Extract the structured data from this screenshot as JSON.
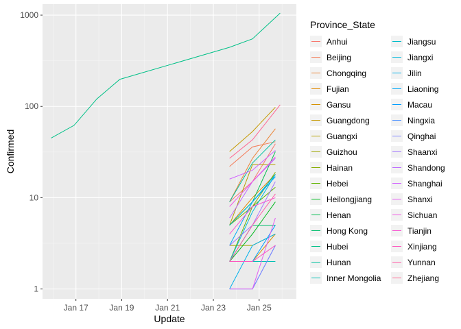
{
  "chart_data": {
    "type": "line",
    "xlabel": "Update",
    "ylabel": "Confirmed",
    "y_scale": "log10",
    "ylim": [
      0.78,
      1320
    ],
    "xlim": [
      "2020-01-15T13:00",
      "2020-01-26T15:00"
    ],
    "y_ticks": [
      1,
      10,
      100,
      1000
    ],
    "y_tick_labels": [
      "1",
      "10",
      "100",
      "1000"
    ],
    "x_ticks": [
      "2020-01-17",
      "2020-01-19",
      "2020-01-21",
      "2020-01-23",
      "2020-01-25"
    ],
    "x_tick_labels": [
      "Jan 17",
      "Jan 19",
      "Jan 21",
      "Jan 23",
      "Jan 25"
    ],
    "grid": true,
    "legend": {
      "title": "Province_State",
      "placement": "right",
      "columns": 2
    },
    "series": [
      {
        "name": "Anhui",
        "color": "#F8766D",
        "x": [
          "2020-01-23T17:00",
          "2020-01-24T17:00",
          "2020-01-25T17:00"
        ],
        "y": [
          9,
          15,
          39
        ]
      },
      {
        "name": "Beijing",
        "color": "#F47B57",
        "x": [
          "2020-01-23T17:00",
          "2020-01-24T17:00",
          "2020-01-25T17:00"
        ],
        "y": [
          22,
          36,
          41
        ]
      },
      {
        "name": "Chongqing",
        "color": "#EB8335",
        "x": [
          "2020-01-23T17:00",
          "2020-01-24T17:00",
          "2020-01-25T17:00"
        ],
        "y": [
          9,
          27,
          57
        ]
      },
      {
        "name": "Fujian",
        "color": "#E18A00",
        "x": [
          "2020-01-23T17:00",
          "2020-01-24T17:00",
          "2020-01-25T17:00"
        ],
        "y": [
          5,
          10,
          18
        ]
      },
      {
        "name": "Gansu",
        "color": "#D59100",
        "x": [
          "2020-01-23T17:00",
          "2020-01-24T17:00",
          "2020-01-25T17:00"
        ],
        "y": [
          2,
          2,
          4
        ]
      },
      {
        "name": "Guangdong",
        "color": "#C59900",
        "x": [
          "2020-01-23T17:00",
          "2020-01-24T17:00",
          "2020-01-25T17:00"
        ],
        "y": [
          32,
          53,
          98
        ]
      },
      {
        "name": "Guangxi",
        "color": "#B3A000",
        "x": [
          "2020-01-23T17:00",
          "2020-01-24T17:00",
          "2020-01-25T17:00"
        ],
        "y": [
          5,
          23,
          23
        ]
      },
      {
        "name": "Guizhou",
        "color": "#9EA700",
        "x": [
          "2020-01-23T17:00",
          "2020-01-24T17:00",
          "2020-01-25T17:00"
        ],
        "y": [
          3,
          3,
          4
        ]
      },
      {
        "name": "Hainan",
        "color": "#85AD00",
        "x": [
          "2020-01-23T17:00",
          "2020-01-24T17:00",
          "2020-01-25T17:00"
        ],
        "y": [
          5,
          8,
          19
        ]
      },
      {
        "name": "Hebei",
        "color": "#5FB300",
        "x": [
          "2020-01-23T17:00",
          "2020-01-24T17:00",
          "2020-01-25T17:00"
        ],
        "y": [
          2,
          8,
          13
        ]
      },
      {
        "name": "Heilongjiang",
        "color": "#00B81F",
        "x": [
          "2020-01-23T17:00",
          "2020-01-24T17:00",
          "2020-01-25T17:00"
        ],
        "y": [
          2,
          4,
          9
        ]
      },
      {
        "name": "Henan",
        "color": "#00BB4E",
        "x": [
          "2020-01-23T17:00",
          "2020-01-24T17:00",
          "2020-01-25T17:00"
        ],
        "y": [
          5,
          9,
          32
        ]
      },
      {
        "name": "Hong Kong",
        "color": "#00BE6C",
        "x": [
          "2020-01-23T17:00",
          "2020-01-24T17:00",
          "2020-01-25T17:00"
        ],
        "y": [
          2,
          5,
          5
        ]
      },
      {
        "name": "Hubei",
        "color": "#00C087",
        "x": [
          "2020-01-15T22:00",
          "2020-01-16T22:00",
          "2020-01-17T22:00",
          "2020-01-18T22:00",
          "2020-01-23T17:00",
          "2020-01-24T17:00",
          "2020-01-25T22:00"
        ],
        "y": [
          45,
          62,
          121,
          198,
          444,
          549,
          1052
        ]
      },
      {
        "name": "Hunan",
        "color": "#00C19F",
        "x": [
          "2020-01-23T17:00",
          "2020-01-24T17:00",
          "2020-01-25T17:00"
        ],
        "y": [
          9,
          24,
          43
        ]
      },
      {
        "name": "Inner Mongolia",
        "color": "#00C0B5",
        "x": [
          "2020-01-24T17:00",
          "2020-01-25T17:00"
        ],
        "y": [
          2,
          2
        ]
      },
      {
        "name": "Jiangsu",
        "color": "#00BDCA",
        "x": [
          "2020-01-23T17:00",
          "2020-01-24T17:00",
          "2020-01-25T17:00"
        ],
        "y": [
          5,
          9,
          18
        ]
      },
      {
        "name": "Jiangxi",
        "color": "#00B8DC",
        "x": [
          "2020-01-23T17:00",
          "2020-01-24T17:00",
          "2020-01-25T17:00"
        ],
        "y": [
          2,
          7,
          18
        ]
      },
      {
        "name": "Jilin",
        "color": "#00B1EB",
        "x": [
          "2020-01-23T17:00",
          "2020-01-24T17:00",
          "2020-01-25T17:00"
        ],
        "y": [
          1,
          3,
          4
        ]
      },
      {
        "name": "Liaoning",
        "color": "#00A8F8",
        "x": [
          "2020-01-23T17:00",
          "2020-01-24T17:00",
          "2020-01-25T17:00"
        ],
        "y": [
          3,
          9,
          17
        ]
      },
      {
        "name": "Macau",
        "color": "#009DFF",
        "x": [
          "2020-01-23T17:00",
          "2020-01-24T17:00",
          "2020-01-25T17:00"
        ],
        "y": [
          2,
          2,
          5
        ]
      },
      {
        "name": "Ningxia",
        "color": "#4A91FF",
        "x": [
          "2020-01-23T17:00",
          "2020-01-24T17:00",
          "2020-01-25T17:00"
        ],
        "y": [
          1,
          1,
          3
        ]
      },
      {
        "name": "Qinghai",
        "color": "#7F84FF",
        "x": [
          "2020-01-24T17:00",
          "2020-01-25T17:00"
        ],
        "y": [
          1,
          3
        ]
      },
      {
        "name": "Shaanxi",
        "color": "#A277FF",
        "x": [
          "2020-01-23T17:00",
          "2020-01-24T17:00",
          "2020-01-25T17:00"
        ],
        "y": [
          3,
          5,
          15
        ]
      },
      {
        "name": "Shandong",
        "color": "#BD6BFF",
        "x": [
          "2020-01-23T17:00",
          "2020-01-24T17:00",
          "2020-01-25T17:00"
        ],
        "y": [
          6,
          15,
          27
        ]
      },
      {
        "name": "Shanghai",
        "color": "#D262FF",
        "x": [
          "2020-01-23T17:00",
          "2020-01-24T17:00",
          "2020-01-25T17:00"
        ],
        "y": [
          16,
          20,
          33
        ]
      },
      {
        "name": "Shanxi",
        "color": "#E35BF3",
        "x": [
          "2020-01-23T17:00",
          "2020-01-24T17:00",
          "2020-01-25T17:00"
        ],
        "y": [
          1,
          1,
          6
        ]
      },
      {
        "name": "Sichuan",
        "color": "#EF57E4",
        "x": [
          "2020-01-23T17:00",
          "2020-01-24T17:00",
          "2020-01-25T17:00"
        ],
        "y": [
          8,
          15,
          28
        ]
      },
      {
        "name": "Tianjin",
        "color": "#F855D2",
        "x": [
          "2020-01-23T17:00",
          "2020-01-24T17:00",
          "2020-01-25T17:00"
        ],
        "y": [
          4,
          8,
          10
        ]
      },
      {
        "name": "Xinjiang",
        "color": "#FD57BE",
        "x": [
          "2020-01-23T17:00",
          "2020-01-24T17:00",
          "2020-01-25T17:00"
        ],
        "y": [
          2,
          2,
          3
        ]
      },
      {
        "name": "Yunnan",
        "color": "#FF5DA8",
        "x": [
          "2020-01-23T17:00",
          "2020-01-24T17:00",
          "2020-01-25T17:00"
        ],
        "y": [
          2,
          5,
          11
        ]
      },
      {
        "name": "Zhejiang",
        "color": "#FF6490",
        "x": [
          "2020-01-23T17:00",
          "2020-01-24T17:00",
          "2020-01-25T22:00"
        ],
        "y": [
          27,
          43,
          104
        ]
      }
    ]
  }
}
